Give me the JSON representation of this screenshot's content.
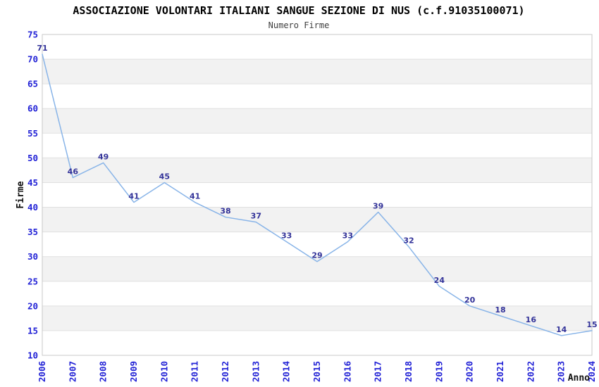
{
  "chart_data": {
    "type": "line",
    "title": "ASSOCIAZIONE VOLONTARI ITALIANI SANGUE SEZIONE DI NUS (c.f.91035100071)",
    "subtitle": "Numero Firme",
    "xlabel": "Anno",
    "ylabel": "Firme",
    "x": [
      2006,
      2007,
      2008,
      2009,
      2010,
      2011,
      2012,
      2013,
      2014,
      2015,
      2016,
      2017,
      2018,
      2019,
      2020,
      2021,
      2022,
      2023,
      2024
    ],
    "series": [
      {
        "name": "Numero Firme",
        "values": [
          71,
          46,
          49,
          41,
          45,
          41,
          38,
          37,
          33,
          29,
          33,
          39,
          32,
          24,
          20,
          18,
          16,
          14,
          15
        ]
      }
    ],
    "ylim": [
      10,
      75
    ],
    "ytick_step": 5,
    "grid": "horizontal-alternating-bands",
    "legend": "none",
    "point_labels_visible": true,
    "x_tick_rotation_degrees": -90,
    "colors": {
      "line": "#88b4e8",
      "tick_label": "#2222d6",
      "point_label": "#333399",
      "band": "#f2f2f2",
      "gridline": "#e0e0e0",
      "border": "#c8c8c8",
      "title": "#000000",
      "subtitle": "#404040",
      "axis_title": "#111111",
      "background": "#ffffff"
    }
  }
}
